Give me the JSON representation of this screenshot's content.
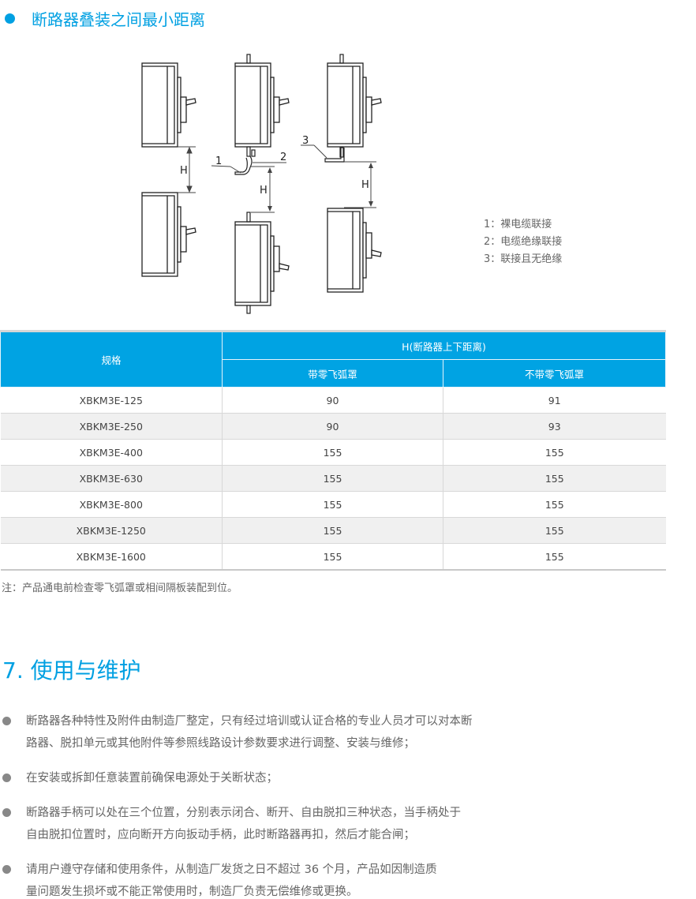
{
  "section": {
    "title": "断路器叠装之间最小距离",
    "accent": "#00a0e2"
  },
  "diagram": {
    "dimension_label": "H",
    "callouts": [
      "1",
      "2",
      "3"
    ],
    "legend": [
      "1：裸电缆联接",
      "2：电缆绝缘联接",
      "3：联接且无绝缘"
    ]
  },
  "table": {
    "header": {
      "spec": "规格",
      "group": "H(断路器上下距离)",
      "col1": "带零飞弧罩",
      "col2": "不带零飞弧罩"
    },
    "header_color": "#00a3e3",
    "rows": [
      [
        "XBKM3E-125",
        "90",
        "91"
      ],
      [
        "XBKM3E-250",
        "90",
        "93"
      ],
      [
        "XBKM3E-400",
        "155",
        "155"
      ],
      [
        "XBKM3E-630",
        "155",
        "155"
      ],
      [
        "XBKM3E-800",
        "155",
        "155"
      ],
      [
        "XBKM3E-1250",
        "155",
        "155"
      ],
      [
        "XBKM3E-1600",
        "155",
        "155"
      ]
    ]
  },
  "note": "注：产品通电前检查零飞弧罩或相间隔板装配到位。",
  "maintenance": {
    "title": "7.  使用与维护",
    "bullets": [
      {
        "lines": [
          "断路器各种特性及附件由制造厂整定，只有经过培训或认证合格的专业人员才可以对本断",
          "路器、脱扣单元或其他附件等参照线路设计参数要求进行调整、安装与维修；"
        ]
      },
      {
        "lines": [
          "在安装或拆卸任意装置前确保电源处于关断状态；"
        ]
      },
      {
        "lines": [
          "断路器手柄可以处在三个位置，分别表示闭合、断开、自由脱扣三种状态，当手柄处于",
          "自由脱扣位置时，应向断开方向扳动手柄，此时断路器再扣，然后才能合闸；"
        ]
      },
      {
        "lines": [
          "请用户遵守存储和使用条件，从制造厂发货之日不超过 36 个月，产品如因制造质",
          "量问题发生损坏或不能正常使用时，制造厂负责无偿维修或更换。"
        ]
      }
    ]
  }
}
